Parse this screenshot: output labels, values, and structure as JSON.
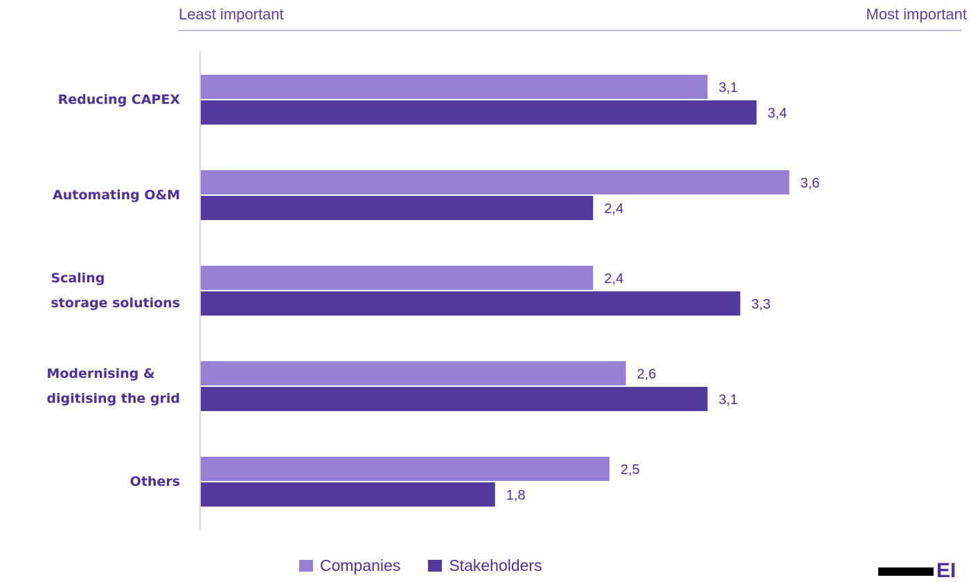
{
  "scale": {
    "min_label": "Least important",
    "max_label": "Most important"
  },
  "chart_data": {
    "type": "bar",
    "orientation": "horizontal",
    "categories": [
      [
        "Reducing CAPEX"
      ],
      [
        "Automating O&M"
      ],
      [
        "Scaling",
        "storage solutions"
      ],
      [
        "Modernising &",
        "digitising the grid"
      ],
      [
        "Others"
      ]
    ],
    "series": [
      {
        "name": "Companies",
        "values": [
          3.1,
          3.6,
          2.4,
          2.6,
          2.5
        ],
        "labels": [
          "3,1",
          "3,6",
          "2,4",
          "2,6",
          "2,5"
        ],
        "color": "#9580d4"
      },
      {
        "name": "Stakeholders",
        "values": [
          3.4,
          2.4,
          3.3,
          3.1,
          1.8
        ],
        "labels": [
          "3,4",
          "2,4",
          "3,3",
          "3,1",
          "1,8"
        ],
        "color": "#533a9e"
      }
    ],
    "xlim": [
      0,
      4.5
    ],
    "grid": false,
    "legend": "bottom-center"
  },
  "logo": {
    "text": "EI"
  }
}
